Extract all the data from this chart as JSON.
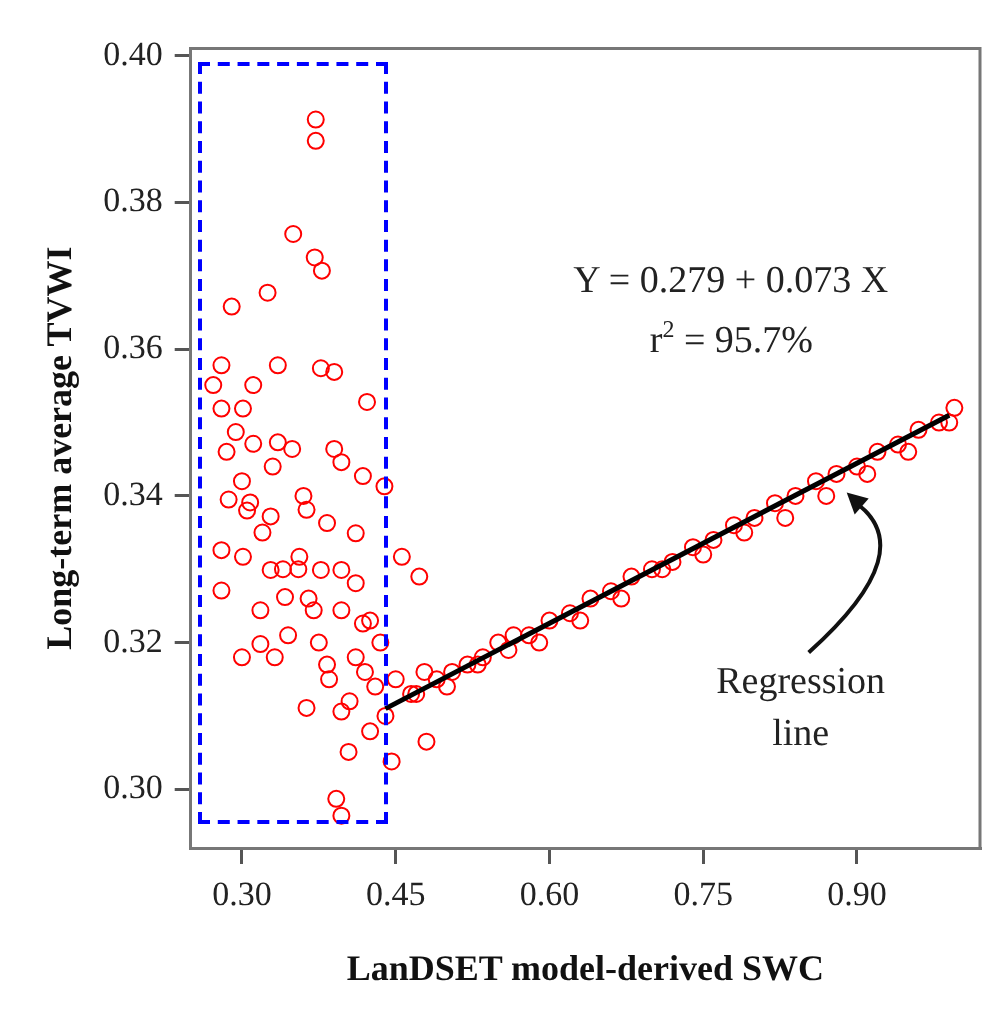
{
  "chart_data": {
    "type": "scatter",
    "xlabel": "LanDSET model-derived SWC",
    "ylabel": "Long-term average TVWI",
    "xlim": [
      0.25,
      1.02
    ],
    "ylim": [
      0.292,
      0.401
    ],
    "xticks": [
      {
        "value": 0.3,
        "label": "0.30"
      },
      0.45,
      {
        "value": 0.6,
        "label": "0.60"
      },
      0.75,
      {
        "value": 0.9,
        "label": "0.90"
      }
    ],
    "yticks": [
      {
        "value": 0.3,
        "label": "0.30"
      },
      0.32,
      0.34,
      0.36,
      0.38,
      {
        "value": 0.4,
        "label": "0.40"
      }
    ],
    "grid": false,
    "series": [
      {
        "color": "#ff0000",
        "marker": "circle",
        "x": [
          0.372,
          0.372,
          0.35,
          0.371,
          0.378,
          0.29,
          0.325,
          0.28,
          0.335,
          0.377,
          0.39,
          0.272,
          0.311,
          0.422,
          0.28,
          0.301,
          0.294,
          0.311,
          0.335,
          0.349,
          0.39,
          0.397,
          0.418,
          0.439,
          0.287,
          0.308,
          0.328,
          0.363,
          0.383,
          0.411,
          0.28,
          0.301,
          0.328,
          0.356,
          0.377,
          0.397,
          0.411,
          0.28,
          0.318,
          0.342,
          0.37,
          0.397,
          0.418,
          0.456,
          0.473,
          0.318,
          0.332,
          0.383,
          0.411,
          0.363,
          0.397,
          0.425,
          0.48,
          0.404,
          0.446,
          0.392,
          0.397,
          0.3,
          0.32,
          0.34,
          0.36,
          0.285,
          0.305,
          0.33,
          0.355,
          0.375,
          0.3,
          0.345,
          0.365,
          0.385,
          0.405,
          0.42,
          0.43,
          0.44,
          0.435,
          0.425,
          0.45,
          0.465,
          0.478,
          0.49,
          0.505,
          0.52,
          0.535,
          0.55,
          0.565,
          0.58,
          0.6,
          0.62,
          0.64,
          0.66,
          0.68,
          0.7,
          0.72,
          0.74,
          0.76,
          0.78,
          0.8,
          0.82,
          0.84,
          0.86,
          0.88,
          0.9,
          0.92,
          0.94,
          0.96,
          0.98,
          0.995,
          0.47,
          0.5,
          0.53,
          0.56,
          0.59,
          0.63,
          0.67,
          0.71,
          0.75,
          0.79,
          0.83,
          0.87,
          0.91,
          0.95,
          0.99
        ],
        "values": [
          0.3913,
          0.3884,
          0.3757,
          0.3725,
          0.3707,
          0.3658,
          0.3677,
          0.3578,
          0.3578,
          0.3574,
          0.3569,
          0.3551,
          0.3551,
          0.3528,
          0.3519,
          0.3519,
          0.3487,
          0.3471,
          0.3473,
          0.3464,
          0.3464,
          0.3446,
          0.3427,
          0.3413,
          0.3395,
          0.3391,
          0.3372,
          0.3381,
          0.3363,
          0.3349,
          0.3326,
          0.3317,
          0.3299,
          0.3317,
          0.3299,
          0.3299,
          0.3281,
          0.3271,
          0.3244,
          0.3262,
          0.3244,
          0.3244,
          0.3226,
          0.3317,
          0.329,
          0.3198,
          0.318,
          0.317,
          0.318,
          0.3111,
          0.3106,
          0.3079,
          0.3065,
          0.3051,
          0.3038,
          0.2987,
          0.2964,
          0.342,
          0.335,
          0.33,
          0.34,
          0.346,
          0.338,
          0.344,
          0.33,
          0.32,
          0.318,
          0.321,
          0.326,
          0.315,
          0.312,
          0.316,
          0.314,
          0.31,
          0.32,
          0.323,
          0.315,
          0.313,
          0.316,
          0.315,
          0.316,
          0.317,
          0.318,
          0.32,
          0.321,
          0.321,
          0.323,
          0.324,
          0.326,
          0.327,
          0.329,
          0.33,
          0.331,
          0.333,
          0.334,
          0.336,
          0.337,
          0.339,
          0.34,
          0.342,
          0.343,
          0.344,
          0.346,
          0.347,
          0.349,
          0.35,
          0.352,
          0.313,
          0.314,
          0.317,
          0.319,
          0.32,
          0.323,
          0.326,
          0.33,
          0.332,
          0.335,
          0.337,
          0.34,
          0.343,
          0.346,
          0.35
        ]
      },
      {
        "type": "line",
        "color": "#000000",
        "x": [
          0.44,
          0.99
        ],
        "values": [
          0.311,
          0.351
        ]
      }
    ],
    "annotations": [
      "Y = 0.279 + 0.073 X",
      "r$^{2}$ = 95.7%",
      {
        "text": "Regression line",
        "x": 0.888,
        "y": 0.341
      }
    ]
  }
}
